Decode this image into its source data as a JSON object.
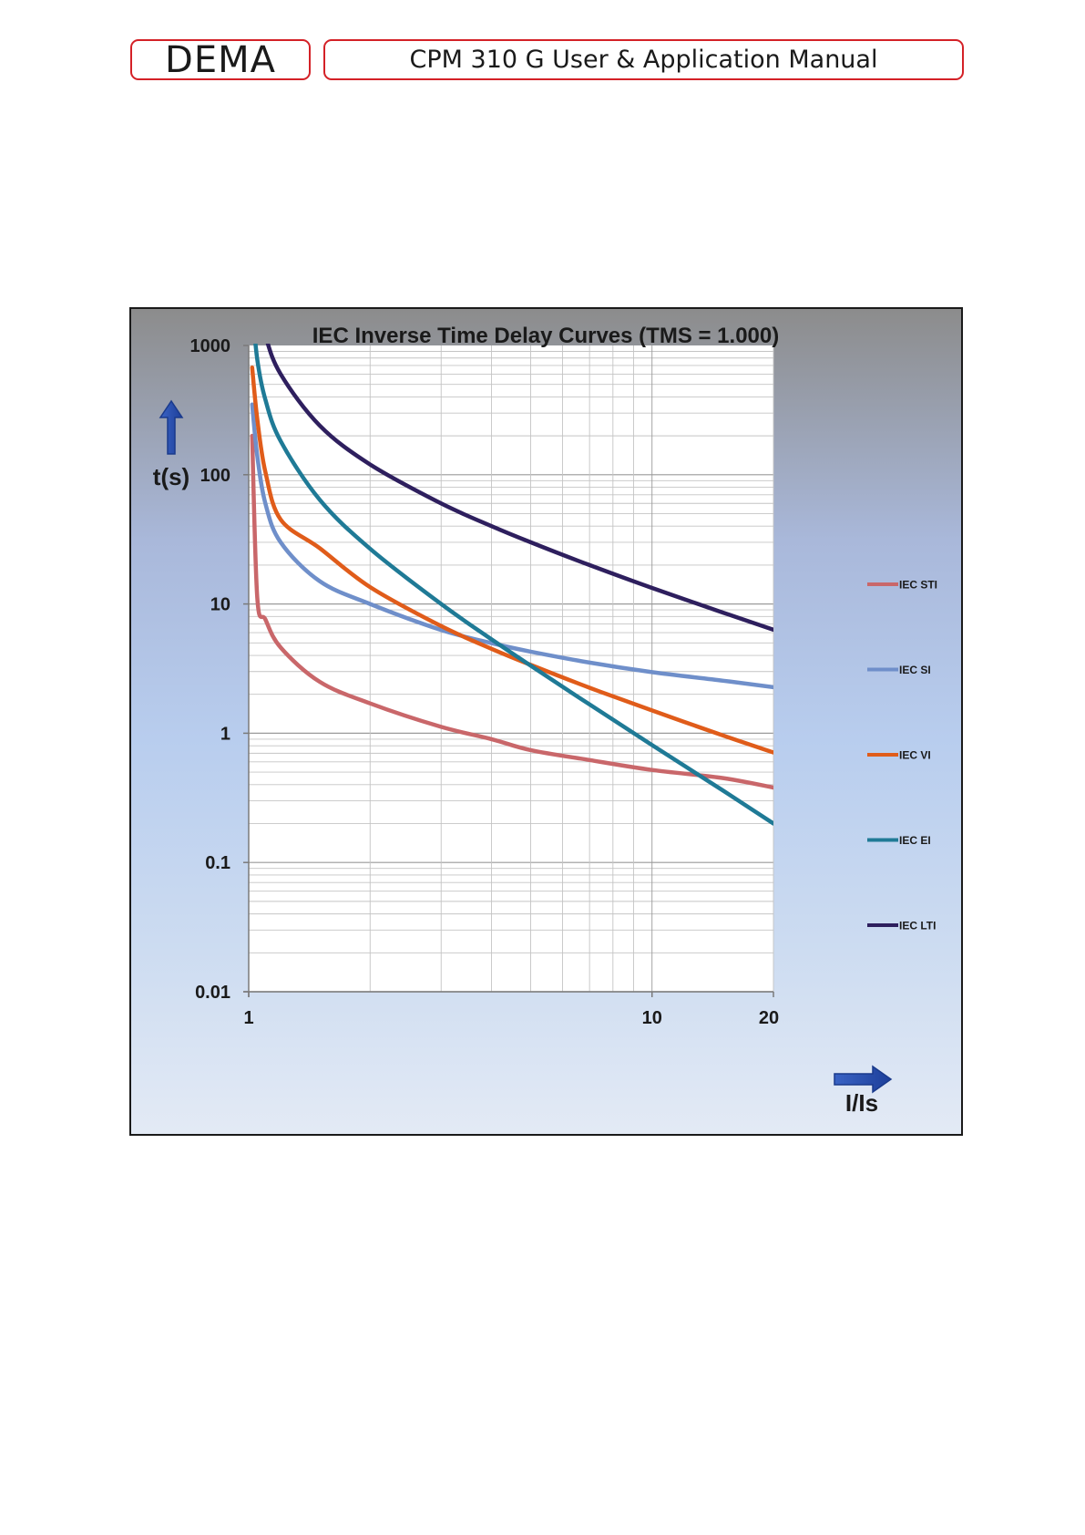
{
  "header": {
    "logo_text": "DEMA",
    "document_title": "CPM 310 G User & Application Manual",
    "accent_color": "#d42127"
  },
  "chart_data": {
    "type": "line",
    "title": "IEC Inverse Time Delay Curves (TMS = 1.000)",
    "xlabel": "I/Is",
    "ylabel": "t(s)",
    "x_scale": "log",
    "y_scale": "log",
    "xlim": [
      1,
      20
    ],
    "ylim": [
      0.01,
      1000
    ],
    "x_ticks": [
      "1",
      "10",
      "20"
    ],
    "y_ticks": [
      "1000",
      "100",
      "10",
      "1",
      "0.1",
      "0.01"
    ],
    "grid": true,
    "legend_position": "right",
    "series": [
      {
        "name": "IEC STI",
        "color": "#c9676a",
        "x": [
          1.02,
          1.05,
          1.1,
          1.2,
          1.5,
          2,
          3,
          4,
          5,
          7,
          10,
          15,
          20
        ],
        "y": [
          200,
          11.2,
          7.6,
          4.6,
          2.5,
          1.7,
          1.12,
          0.9,
          0.74,
          0.62,
          0.52,
          0.45,
          0.38
        ]
      },
      {
        "name": "IEC SI",
        "color": "#6f8fca",
        "x": [
          1.02,
          1.05,
          1.1,
          1.2,
          1.5,
          2,
          3,
          4,
          5,
          7,
          10,
          15,
          20
        ],
        "y": [
          350,
          140,
          60,
          30,
          15,
          10,
          6.3,
          4.98,
          4.28,
          3.52,
          2.97,
          2.55,
          2.27
        ]
      },
      {
        "name": "IEC VI",
        "color": "#e05c1a",
        "x": [
          1.02,
          1.05,
          1.1,
          1.2,
          1.5,
          2,
          3,
          4,
          5,
          7,
          10,
          15,
          20
        ],
        "y": [
          675,
          270,
          105,
          45,
          27,
          13.5,
          6.75,
          4.5,
          3.38,
          2.25,
          1.5,
          0.96,
          0.71
        ]
      },
      {
        "name": "IEC EI",
        "color": "#1f7a96",
        "x": [
          1.02,
          1.05,
          1.1,
          1.2,
          1.5,
          2,
          3,
          4,
          5,
          7,
          10,
          15,
          20
        ],
        "y": [
          2000,
          780,
          381,
          182,
          64,
          26.7,
          10,
          5.33,
          3.33,
          1.67,
          0.81,
          0.36,
          0.2
        ]
      },
      {
        "name": "IEC LTI",
        "color": "#2e1f5e",
        "x": [
          1.05,
          1.1,
          1.2,
          1.5,
          2,
          3,
          4,
          5,
          7,
          10,
          15,
          20
        ],
        "y": [
          2400,
          1200,
          600,
          240,
          120,
          60,
          40,
          30,
          20,
          13.3,
          8.57,
          6.32
        ]
      }
    ]
  }
}
